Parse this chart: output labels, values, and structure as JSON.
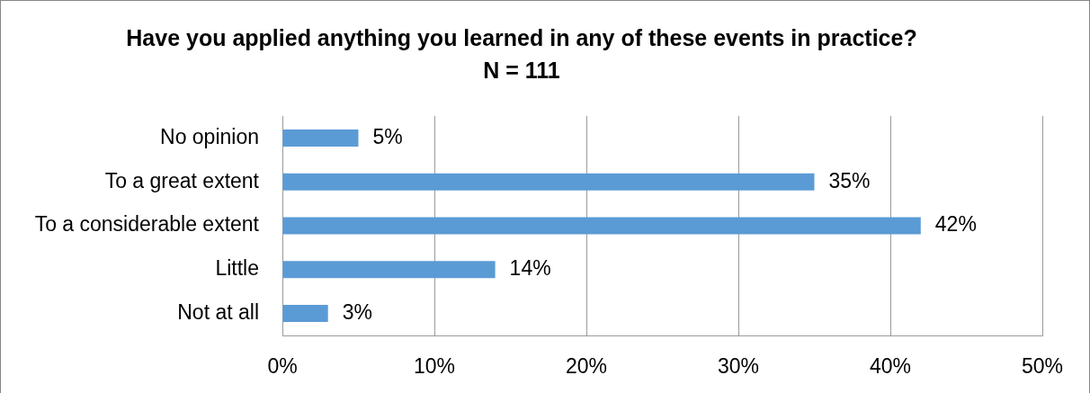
{
  "chart_data": {
    "type": "bar",
    "orientation": "horizontal",
    "title": "Have you applied anything you learned in any of these events in practice?",
    "subtitle": "N = 111",
    "categories": [
      "No opinion",
      "To a great extent",
      "To a considerable extent",
      "Little",
      "Not at all"
    ],
    "values": [
      5,
      35,
      42,
      14,
      3
    ],
    "color": "#5b9bd5",
    "value_labels": [
      "5%",
      "35%",
      "42%",
      "14%",
      "3%"
    ],
    "xlim": [
      0,
      50
    ],
    "xticks": [
      {
        "value": 0,
        "label": "0%"
      },
      {
        "value": 10,
        "label": "10%"
      },
      {
        "value": 20,
        "label": "20%"
      },
      {
        "value": 30,
        "label": "30%"
      },
      {
        "value": 40,
        "label": "40%"
      },
      {
        "value": 50,
        "label": "50%"
      }
    ],
    "grid": "x"
  }
}
